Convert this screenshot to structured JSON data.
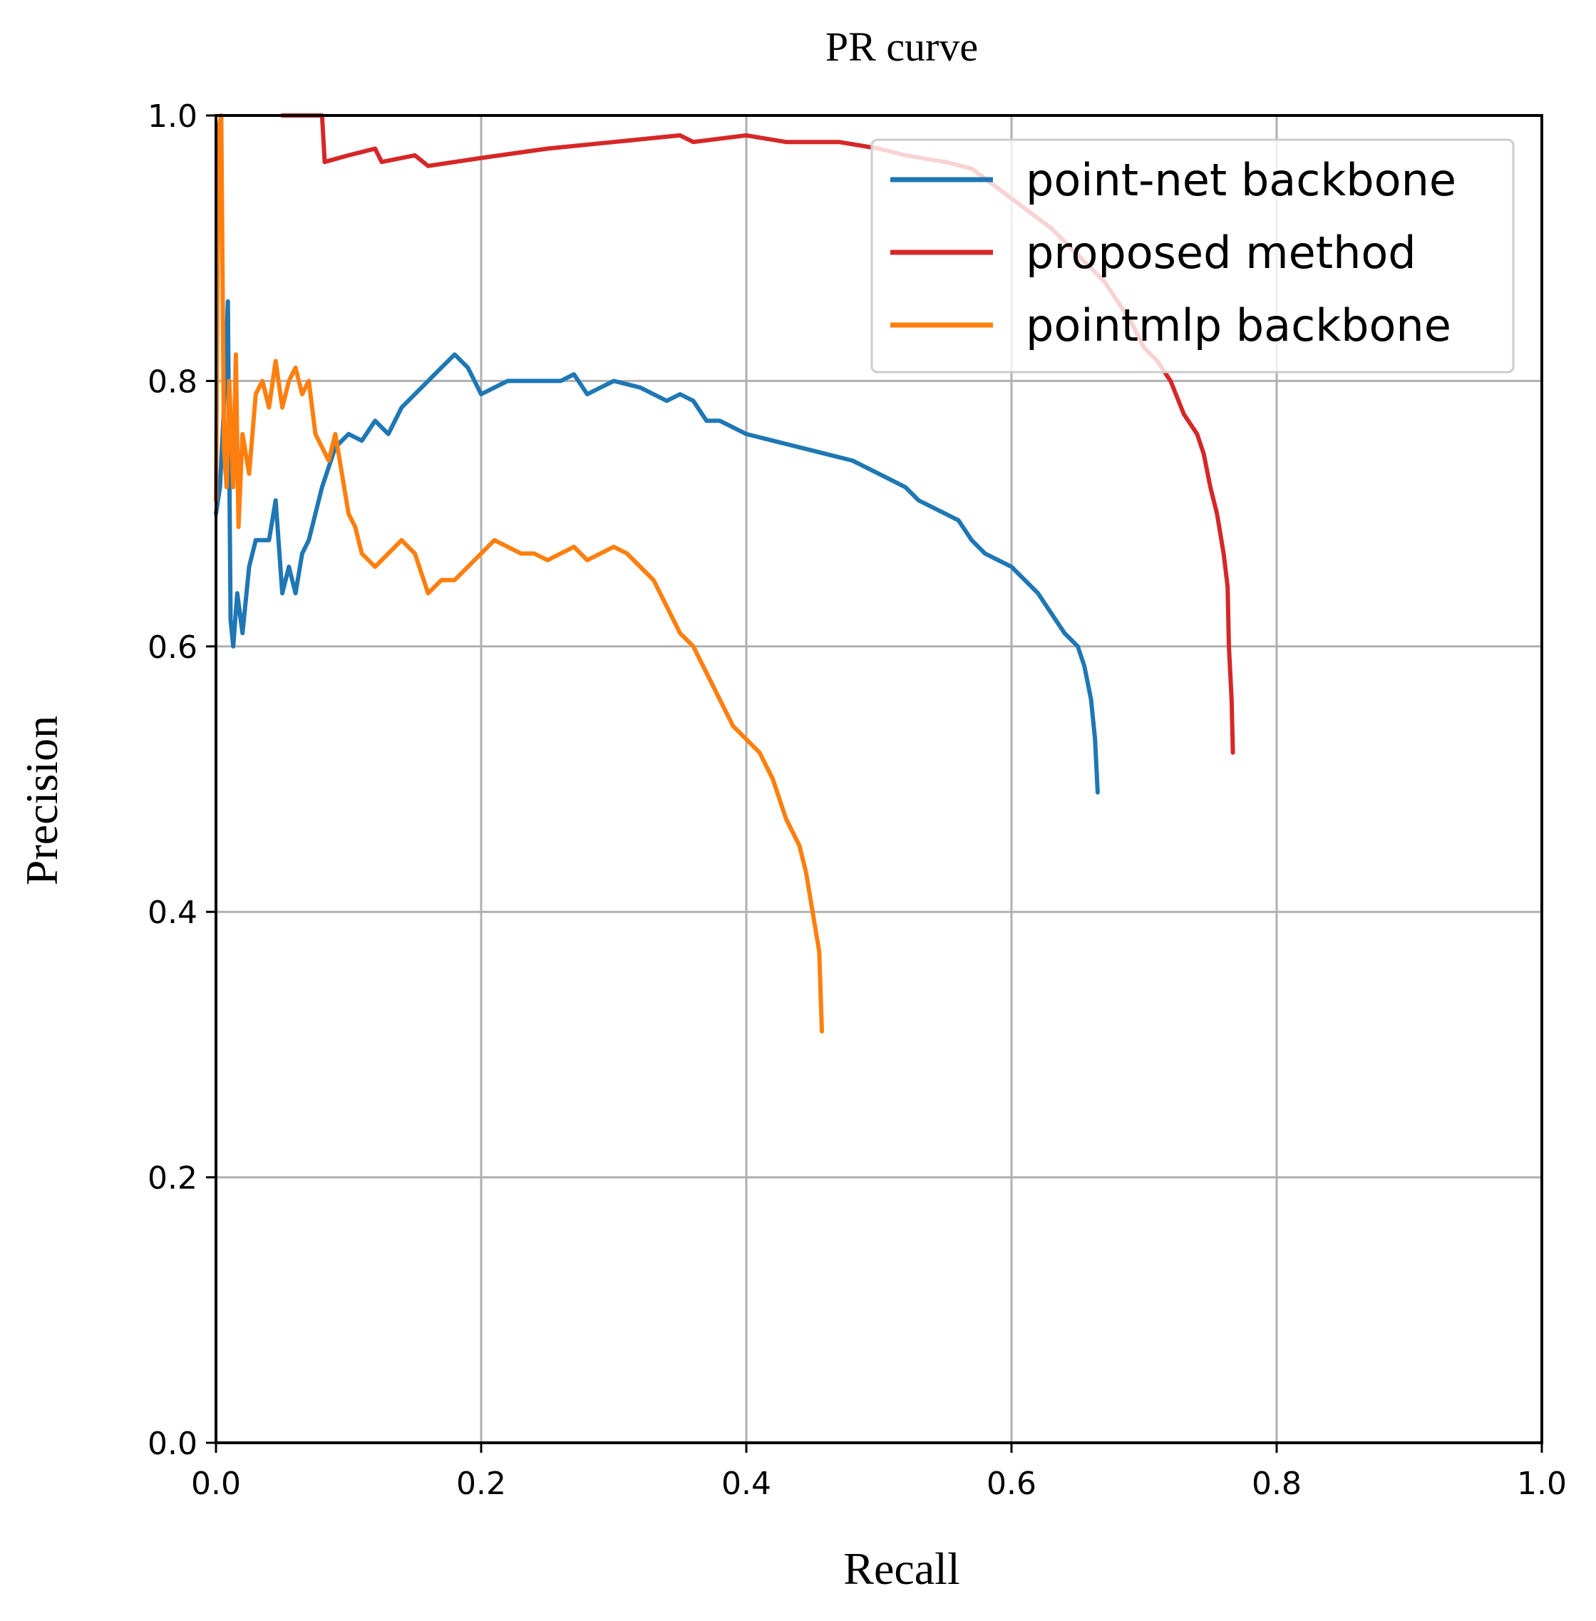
{
  "chart_data": {
    "type": "line",
    "title": "PR curve",
    "xlabel": "Recall",
    "ylabel": "Precision",
    "xlim": [
      0.0,
      1.0
    ],
    "ylim": [
      0.0,
      1.0
    ],
    "xticks": [
      "0.0",
      "0.2",
      "0.4",
      "0.6",
      "0.8",
      "1.0"
    ],
    "yticks": [
      "0.0",
      "0.2",
      "0.4",
      "0.6",
      "0.8",
      "1.0"
    ],
    "grid": true,
    "legend_position": "top-right",
    "series": [
      {
        "name": "point-net backbone",
        "color": "#1f77b4",
        "points": [
          [
            0.0,
            0.7
          ],
          [
            0.003,
            0.72
          ],
          [
            0.006,
            0.78
          ],
          [
            0.009,
            0.86
          ],
          [
            0.011,
            0.62
          ],
          [
            0.013,
            0.6
          ],
          [
            0.016,
            0.64
          ],
          [
            0.02,
            0.61
          ],
          [
            0.025,
            0.66
          ],
          [
            0.03,
            0.68
          ],
          [
            0.04,
            0.68
          ],
          [
            0.045,
            0.71
          ],
          [
            0.05,
            0.64
          ],
          [
            0.055,
            0.66
          ],
          [
            0.06,
            0.64
          ],
          [
            0.065,
            0.67
          ],
          [
            0.07,
            0.68
          ],
          [
            0.08,
            0.72
          ],
          [
            0.09,
            0.75
          ],
          [
            0.1,
            0.76
          ],
          [
            0.11,
            0.755
          ],
          [
            0.12,
            0.77
          ],
          [
            0.13,
            0.76
          ],
          [
            0.14,
            0.78
          ],
          [
            0.15,
            0.79
          ],
          [
            0.16,
            0.8
          ],
          [
            0.17,
            0.81
          ],
          [
            0.18,
            0.82
          ],
          [
            0.19,
            0.81
          ],
          [
            0.2,
            0.79
          ],
          [
            0.21,
            0.795
          ],
          [
            0.22,
            0.8
          ],
          [
            0.24,
            0.8
          ],
          [
            0.26,
            0.8
          ],
          [
            0.27,
            0.805
          ],
          [
            0.28,
            0.79
          ],
          [
            0.3,
            0.8
          ],
          [
            0.32,
            0.795
          ],
          [
            0.33,
            0.79
          ],
          [
            0.34,
            0.785
          ],
          [
            0.35,
            0.79
          ],
          [
            0.36,
            0.785
          ],
          [
            0.37,
            0.77
          ],
          [
            0.38,
            0.77
          ],
          [
            0.39,
            0.765
          ],
          [
            0.4,
            0.76
          ],
          [
            0.42,
            0.755
          ],
          [
            0.44,
            0.75
          ],
          [
            0.46,
            0.745
          ],
          [
            0.48,
            0.74
          ],
          [
            0.5,
            0.73
          ],
          [
            0.52,
            0.72
          ],
          [
            0.53,
            0.71
          ],
          [
            0.55,
            0.7
          ],
          [
            0.56,
            0.695
          ],
          [
            0.57,
            0.68
          ],
          [
            0.58,
            0.67
          ],
          [
            0.6,
            0.66
          ],
          [
            0.62,
            0.64
          ],
          [
            0.63,
            0.625
          ],
          [
            0.64,
            0.61
          ],
          [
            0.65,
            0.6
          ],
          [
            0.655,
            0.585
          ],
          [
            0.66,
            0.56
          ],
          [
            0.663,
            0.53
          ],
          [
            0.665,
            0.49
          ]
        ]
      },
      {
        "name": "proposed method",
        "color": "#d62728",
        "points": [
          [
            0.05,
            1.0
          ],
          [
            0.08,
            1.0
          ],
          [
            0.082,
            0.965
          ],
          [
            0.1,
            0.97
          ],
          [
            0.12,
            0.975
          ],
          [
            0.125,
            0.965
          ],
          [
            0.15,
            0.97
          ],
          [
            0.16,
            0.962
          ],
          [
            0.2,
            0.968
          ],
          [
            0.25,
            0.975
          ],
          [
            0.3,
            0.98
          ],
          [
            0.35,
            0.985
          ],
          [
            0.36,
            0.98
          ],
          [
            0.4,
            0.985
          ],
          [
            0.43,
            0.98
          ],
          [
            0.47,
            0.98
          ],
          [
            0.5,
            0.975
          ],
          [
            0.52,
            0.97
          ],
          [
            0.55,
            0.965
          ],
          [
            0.57,
            0.96
          ],
          [
            0.59,
            0.945
          ],
          [
            0.61,
            0.93
          ],
          [
            0.63,
            0.915
          ],
          [
            0.65,
            0.895
          ],
          [
            0.67,
            0.875
          ],
          [
            0.68,
            0.86
          ],
          [
            0.69,
            0.845
          ],
          [
            0.7,
            0.825
          ],
          [
            0.71,
            0.815
          ],
          [
            0.72,
            0.8
          ],
          [
            0.73,
            0.775
          ],
          [
            0.74,
            0.76
          ],
          [
            0.745,
            0.745
          ],
          [
            0.75,
            0.72
          ],
          [
            0.755,
            0.7
          ],
          [
            0.76,
            0.67
          ],
          [
            0.763,
            0.645
          ],
          [
            0.764,
            0.6
          ],
          [
            0.766,
            0.56
          ],
          [
            0.767,
            0.52
          ]
        ]
      },
      {
        "name": "pointmlp backbone",
        "color": "#ff7f0e",
        "points": [
          [
            0.0,
            0.71
          ],
          [
            0.002,
            0.99
          ],
          [
            0.004,
            1.0
          ],
          [
            0.006,
            0.75
          ],
          [
            0.008,
            0.72
          ],
          [
            0.01,
            0.8
          ],
          [
            0.013,
            0.72
          ],
          [
            0.015,
            0.82
          ],
          [
            0.017,
            0.69
          ],
          [
            0.02,
            0.76
          ],
          [
            0.025,
            0.73
          ],
          [
            0.03,
            0.79
          ],
          [
            0.035,
            0.8
          ],
          [
            0.04,
            0.78
          ],
          [
            0.045,
            0.815
          ],
          [
            0.05,
            0.78
          ],
          [
            0.055,
            0.8
          ],
          [
            0.06,
            0.81
          ],
          [
            0.065,
            0.79
          ],
          [
            0.07,
            0.8
          ],
          [
            0.075,
            0.76
          ],
          [
            0.08,
            0.75
          ],
          [
            0.085,
            0.74
          ],
          [
            0.09,
            0.76
          ],
          [
            0.095,
            0.73
          ],
          [
            0.1,
            0.7
          ],
          [
            0.105,
            0.69
          ],
          [
            0.11,
            0.67
          ],
          [
            0.12,
            0.66
          ],
          [
            0.13,
            0.67
          ],
          [
            0.14,
            0.68
          ],
          [
            0.15,
            0.67
          ],
          [
            0.16,
            0.64
          ],
          [
            0.17,
            0.65
          ],
          [
            0.18,
            0.65
          ],
          [
            0.19,
            0.66
          ],
          [
            0.2,
            0.67
          ],
          [
            0.21,
            0.68
          ],
          [
            0.22,
            0.675
          ],
          [
            0.23,
            0.67
          ],
          [
            0.24,
            0.67
          ],
          [
            0.25,
            0.665
          ],
          [
            0.26,
            0.67
          ],
          [
            0.27,
            0.675
          ],
          [
            0.28,
            0.665
          ],
          [
            0.29,
            0.67
          ],
          [
            0.3,
            0.675
          ],
          [
            0.31,
            0.67
          ],
          [
            0.32,
            0.66
          ],
          [
            0.33,
            0.65
          ],
          [
            0.34,
            0.63
          ],
          [
            0.35,
            0.61
          ],
          [
            0.36,
            0.6
          ],
          [
            0.37,
            0.58
          ],
          [
            0.38,
            0.56
          ],
          [
            0.39,
            0.54
          ],
          [
            0.4,
            0.53
          ],
          [
            0.41,
            0.52
          ],
          [
            0.42,
            0.5
          ],
          [
            0.43,
            0.47
          ],
          [
            0.44,
            0.45
          ],
          [
            0.445,
            0.43
          ],
          [
            0.45,
            0.4
          ],
          [
            0.455,
            0.37
          ],
          [
            0.457,
            0.31
          ]
        ]
      }
    ]
  }
}
